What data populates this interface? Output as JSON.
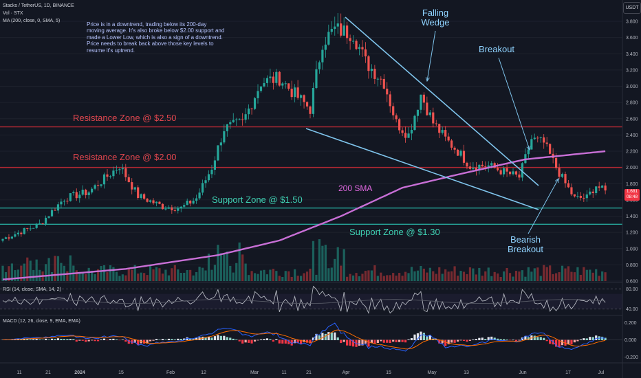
{
  "header": {
    "symbol_line": "Stacks / TetherUS, 1D, BINANCE",
    "vol_line": "Vol · STX",
    "ma_line": "MA (200, close, 0, SMA, 5)"
  },
  "currency_button": "USDT",
  "note": "Price is in a downtrend, trading below its 200-day moving average. It's also broke below $2.00 support and made a Lower Low, which is also a sign of a downtrend. Price needs to break back above those key levels to resume it's uptrend.",
  "annotations": {
    "resistance_250": "Resistance Zone @ $2.50",
    "resistance_200": "Resistance Zone @ $2.00",
    "support_150": "Support Zone @ $1.50",
    "support_130": "Support Zone @ $1.30",
    "sma_label": "200 SMA",
    "falling_wedge": [
      "Falling",
      "Wedge"
    ],
    "breakout": "Breakout",
    "bearish_breakout": [
      "Bearish",
      "Breakout"
    ]
  },
  "price_axis": [
    "3.800",
    "3.600",
    "3.400",
    "3.200",
    "3.000",
    "2.800",
    "2.600",
    "2.400",
    "2.200",
    "2.000",
    "1.800",
    "1.600",
    "1.400",
    "1.200",
    "1.000",
    "0.800",
    "0.600"
  ],
  "last_price": {
    "price": "1.681",
    "countdown": "08:48"
  },
  "rsi": {
    "label": "RSI (14, close, SMA, 14, 2)",
    "ticks": [
      "80.00",
      "40.00"
    ]
  },
  "macd": {
    "label": "MACD (12, 26, close, 9, EMA, EMA)",
    "ticks": [
      "0.200",
      "0.000",
      "-0.200"
    ]
  },
  "time_axis": [
    "11",
    "21",
    "2024",
    "15",
    "Feb",
    "12",
    "Mar",
    "11",
    "21",
    "Apr",
    "15",
    "May",
    "13",
    "Jun",
    "17",
    "Jul"
  ],
  "colors": {
    "up": "#26a69a",
    "down": "#ef5350",
    "resistance": "#b22833",
    "support": "#26a69a",
    "sma": "#c86fd6",
    "wedge": "#7fc4ec"
  },
  "chart_data": {
    "type": "candlestick",
    "timeframe": "1D",
    "ylim": [
      0.6,
      3.9
    ],
    "horizontal_levels": [
      2.5,
      2.0,
      1.5,
      1.3
    ],
    "close_anchors": [
      [
        0,
        1.12
      ],
      [
        12,
        1.3
      ],
      [
        20,
        1.62
      ],
      [
        28,
        1.7
      ],
      [
        38,
        2.02
      ],
      [
        44,
        1.65
      ],
      [
        52,
        1.52
      ],
      [
        58,
        1.5
      ],
      [
        63,
        1.62
      ],
      [
        68,
        2.0
      ],
      [
        72,
        2.48
      ],
      [
        78,
        2.55
      ],
      [
        84,
        3.05
      ],
      [
        90,
        3.1
      ],
      [
        95,
        2.9
      ],
      [
        100,
        2.72
      ],
      [
        104,
        3.55
      ],
      [
        108,
        3.7
      ],
      [
        114,
        3.65
      ],
      [
        118,
        3.3
      ],
      [
        124,
        3.05
      ],
      [
        128,
        2.55
      ],
      [
        132,
        2.4
      ],
      [
        136,
        2.9
      ],
      [
        140,
        2.55
      ],
      [
        144,
        2.35
      ],
      [
        148,
        2.2
      ],
      [
        152,
        2.02
      ],
      [
        158,
        2.02
      ],
      [
        164,
        1.93
      ],
      [
        168,
        1.88
      ],
      [
        172,
        2.35
      ],
      [
        176,
        2.3
      ],
      [
        180,
        2.0
      ],
      [
        183,
        1.8
      ],
      [
        186,
        1.62
      ],
      [
        190,
        1.63
      ],
      [
        193,
        1.78
      ],
      [
        196,
        1.7
      ]
    ],
    "sma200_anchors": [
      [
        0,
        0.62
      ],
      [
        40,
        0.75
      ],
      [
        70,
        0.92
      ],
      [
        90,
        1.1
      ],
      [
        110,
        1.4
      ],
      [
        130,
        1.75
      ],
      [
        150,
        1.93
      ],
      [
        170,
        2.1
      ],
      [
        196,
        2.2
      ]
    ],
    "volume_note": "daily volume bars shown in the price pane",
    "rsi_range": [
      30,
      90
    ],
    "macd_range": [
      -0.25,
      0.25
    ]
  }
}
